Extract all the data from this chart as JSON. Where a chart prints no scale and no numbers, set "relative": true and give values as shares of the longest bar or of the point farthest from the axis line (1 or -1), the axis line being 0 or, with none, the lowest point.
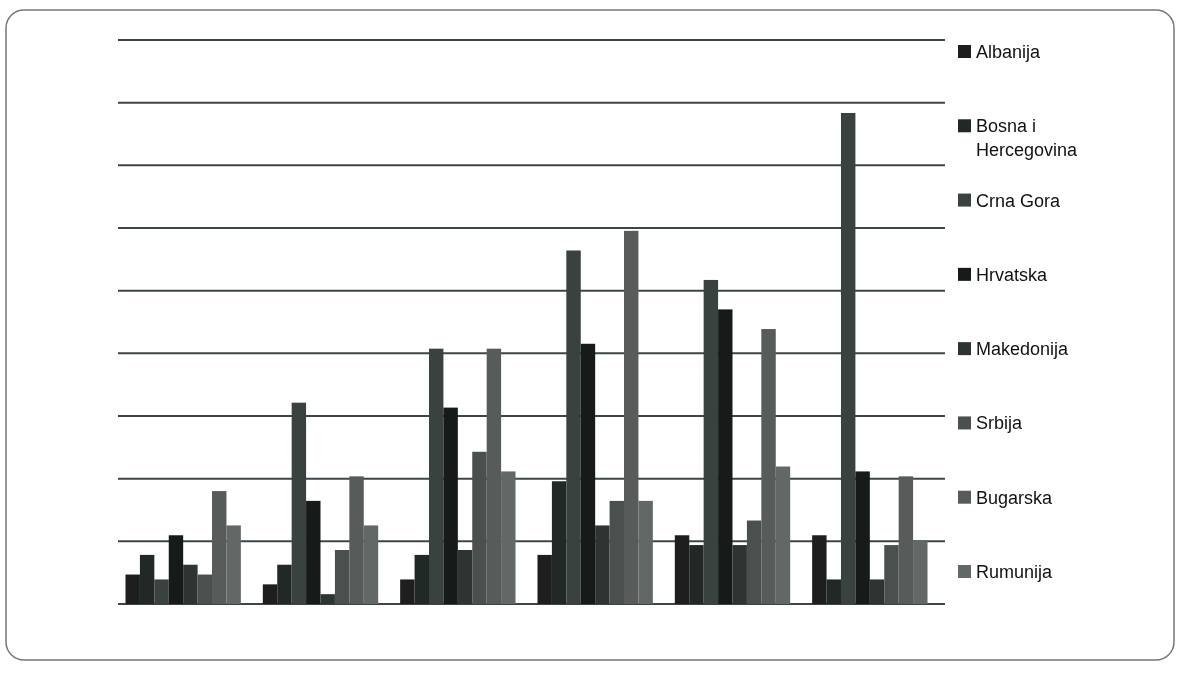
{
  "chart_data": {
    "type": "bar",
    "relative": true,
    "grid": true,
    "legend": "right",
    "categories": [
      null,
      null,
      null,
      null,
      null,
      null
    ],
    "series": [
      {
        "name": "Albanija",
        "color": "#1e1e1e",
        "values": [
          0.06,
          0.04,
          0.05,
          0.1,
          0.14,
          0.14
        ]
      },
      {
        "name": "Bosna i Hercegovina",
        "color": "#222826",
        "values": [
          0.1,
          0.08,
          0.1,
          0.25,
          0.12,
          0.05
        ]
      },
      {
        "name": "Crna Gora",
        "color": "#3a4240",
        "values": [
          0.05,
          0.41,
          0.52,
          0.72,
          0.66,
          1
        ]
      },
      {
        "name": "Hrvatska",
        "color": "#161a18",
        "values": [
          0.14,
          0.21,
          0.4,
          0.53,
          0.6,
          0.27
        ]
      },
      {
        "name": "Makedonija",
        "color": "#2e3432",
        "values": [
          0.08,
          0.02,
          0.11,
          0.16,
          0.12,
          0.05
        ]
      },
      {
        "name": "Srbija",
        "color": "#4a504e",
        "values": [
          0.06,
          0.11,
          0.31,
          0.21,
          0.17,
          0.12
        ]
      },
      {
        "name": "Bugarska",
        "color": "#575c5a",
        "values": [
          0.23,
          0.26,
          0.52,
          0.76,
          0.56,
          0.26
        ]
      },
      {
        "name": "Rumunija",
        "color": "#626866",
        "values": [
          0.16,
          0.16,
          0.27,
          0.21,
          0.28,
          0.13
        ]
      }
    ]
  }
}
